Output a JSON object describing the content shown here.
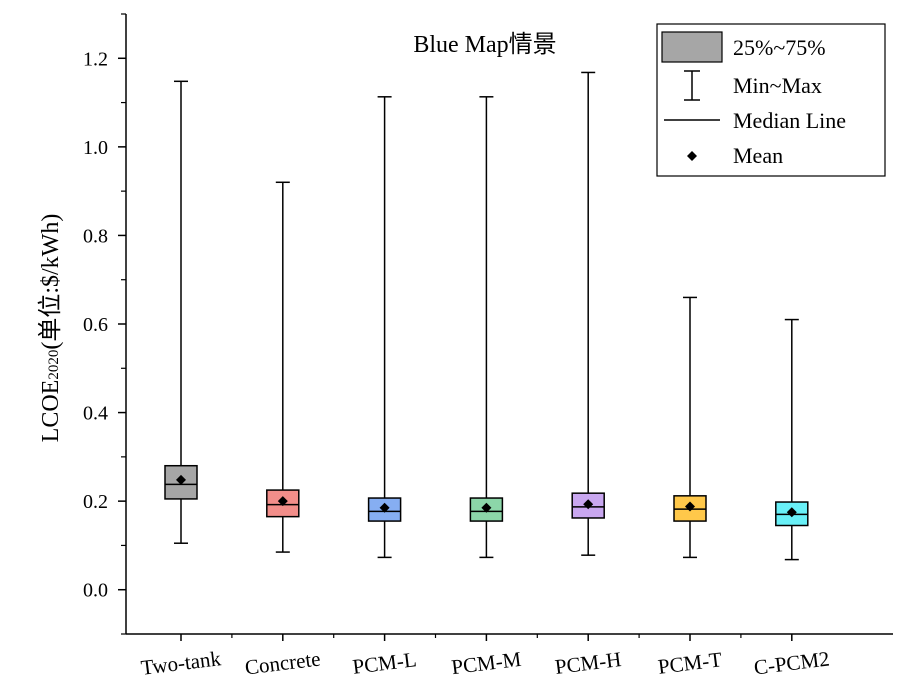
{
  "chart_data": {
    "type": "box",
    "title": "Blue Map情景",
    "ylabel": {
      "prefix": "LCOE",
      "subscript": "2020",
      "suffix": "(单位:$/kWh)"
    },
    "ylim": [
      -0.1,
      1.3
    ],
    "yticks": [
      "0.0",
      "0.2",
      "0.4",
      "0.6",
      "0.8",
      "1.0",
      "1.2"
    ],
    "ytick_values": [
      0.0,
      0.2,
      0.4,
      0.6,
      0.8,
      1.0,
      1.2
    ],
    "legend": {
      "placement": "top-right",
      "items": [
        {
          "label": "25%~75%",
          "symbol": "box"
        },
        {
          "label": "Min~Max",
          "symbol": "whisker"
        },
        {
          "label": "Median Line",
          "symbol": "line"
        },
        {
          "label": "Mean",
          "symbol": "diamond"
        }
      ]
    },
    "series": [
      {
        "category": "Two-tank",
        "min": 0.105,
        "q1": 0.205,
        "median": 0.238,
        "q3": 0.28,
        "max": 1.148,
        "mean": 0.248,
        "color": "#a6a6a6"
      },
      {
        "category": "Concrete",
        "min": 0.085,
        "q1": 0.165,
        "median": 0.192,
        "q3": 0.225,
        "max": 0.92,
        "mean": 0.2,
        "color": "#f28e8a"
      },
      {
        "category": "PCM-L",
        "min": 0.073,
        "q1": 0.155,
        "median": 0.177,
        "q3": 0.207,
        "max": 1.113,
        "mean": 0.185,
        "color": "#86aef2"
      },
      {
        "category": "PCM-M",
        "min": 0.073,
        "q1": 0.155,
        "median": 0.177,
        "q3": 0.207,
        "max": 1.113,
        "mean": 0.185,
        "color": "#8cd6a9"
      },
      {
        "category": "PCM-H",
        "min": 0.078,
        "q1": 0.162,
        "median": 0.187,
        "q3": 0.218,
        "max": 1.168,
        "mean": 0.193,
        "color": "#c9a7f0"
      },
      {
        "category": "PCM-T",
        "min": 0.073,
        "q1": 0.155,
        "median": 0.182,
        "q3": 0.212,
        "max": 0.66,
        "mean": 0.188,
        "color": "#ffc84a"
      },
      {
        "category": "C-PCM2",
        "min": 0.068,
        "q1": 0.145,
        "median": 0.17,
        "q3": 0.198,
        "max": 0.61,
        "mean": 0.175,
        "color": "#69f0f7"
      }
    ]
  }
}
